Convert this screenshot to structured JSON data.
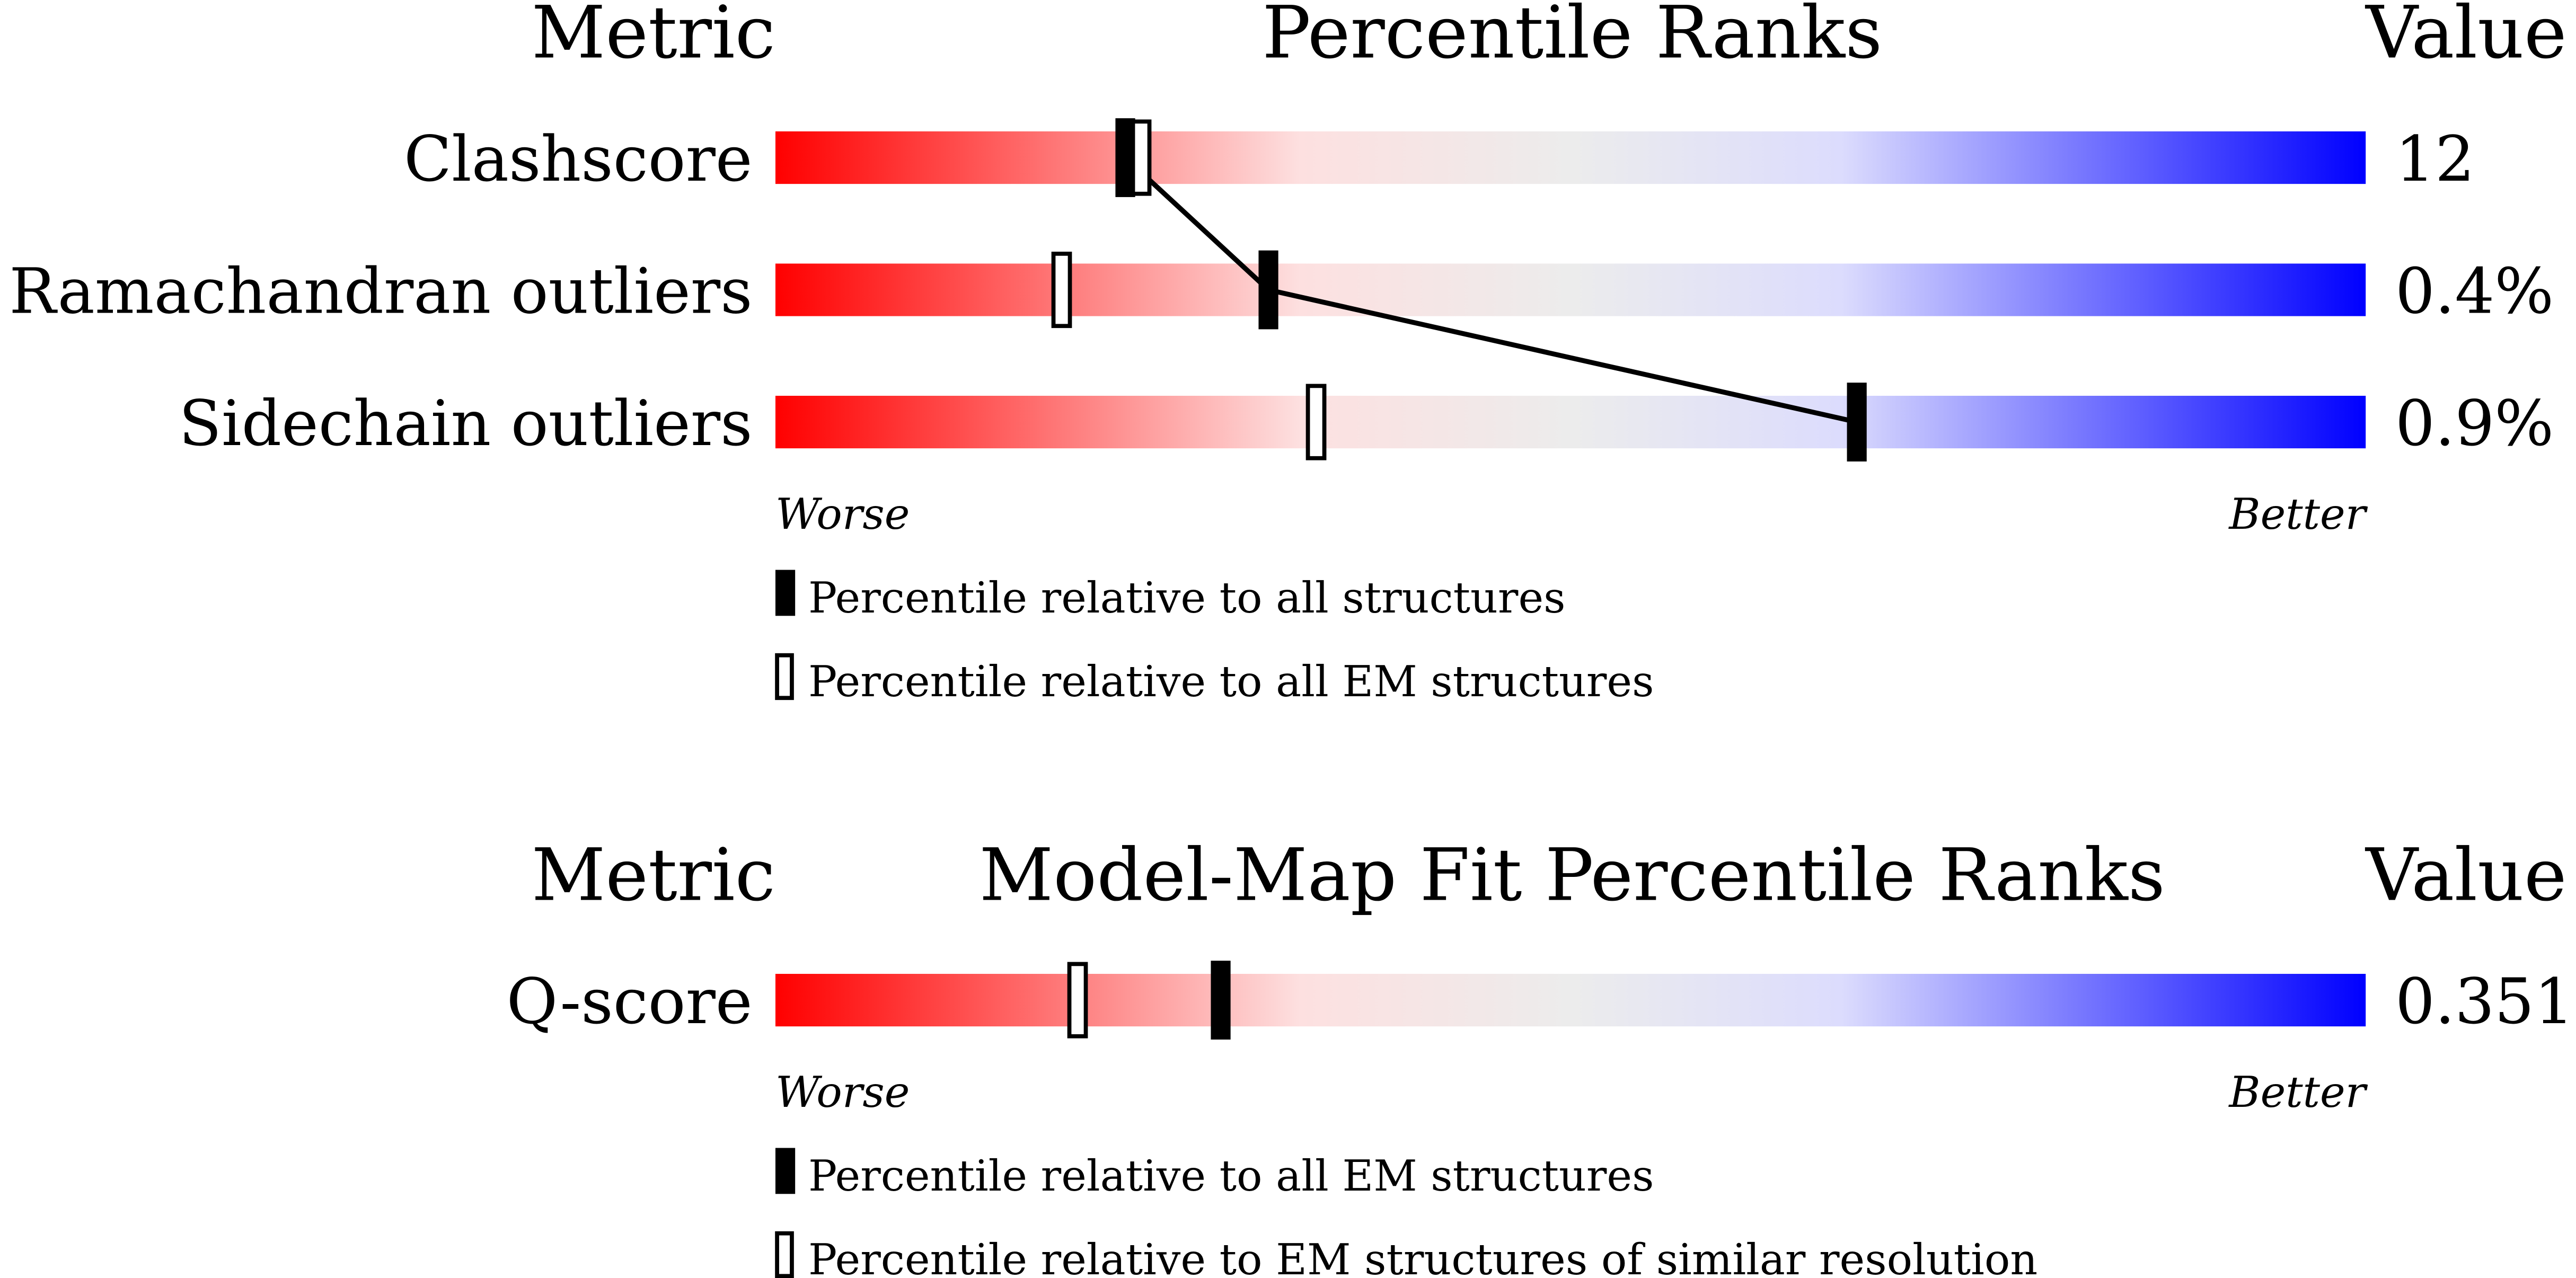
{
  "chart_data": [
    {
      "type": "slider",
      "title": "Percentile Ranks",
      "metric_header": "Metric",
      "value_header": "Value",
      "categories": [
        "Clashscore",
        "Ramachandran outliers",
        "Sidechain outliers"
      ],
      "metric_values": [
        "12",
        "0.4%",
        "0.9%"
      ],
      "xlim": [
        0,
        100
      ],
      "worse_label": "Worse",
      "better_label": "Better",
      "connect": true,
      "series": [
        {
          "name": "Percentile relative to all structures",
          "marker": "filled",
          "color": "#000000",
          "values": [
            22,
            31,
            68
          ]
        },
        {
          "name": "Percentile relative to all EM structures",
          "marker": "open",
          "color": "#000000",
          "values": [
            23,
            18,
            34
          ]
        }
      ]
    },
    {
      "type": "slider",
      "title": "Model-Map Fit Percentile Ranks",
      "metric_header": "Metric",
      "value_header": "Value",
      "categories": [
        "Q-score"
      ],
      "metric_values": [
        "0.351"
      ],
      "xlim": [
        0,
        100
      ],
      "worse_label": "Worse",
      "better_label": "Better",
      "connect": false,
      "series": [
        {
          "name": "Percentile relative to all EM structures",
          "marker": "filled",
          "color": "#000000",
          "values": [
            28
          ]
        },
        {
          "name": "Percentile relative to EM structures of similar resolution",
          "marker": "open",
          "color": "#000000",
          "values": [
            19
          ]
        }
      ]
    }
  ]
}
